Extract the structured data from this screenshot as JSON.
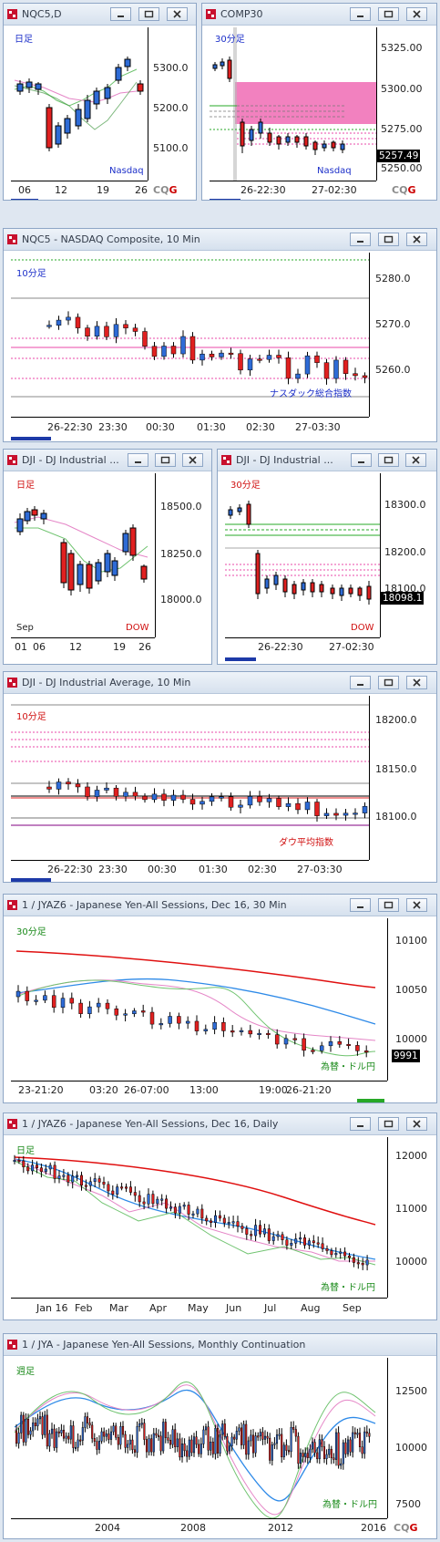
{
  "windows": [
    {
      "id": "nqc5-daily",
      "title": "NQC5,D",
      "period": "日足",
      "period_color": "#1c2fc9",
      "label": "Nasdaq",
      "label_color": "#1c2fc9",
      "y_ticks": [
        "5300.0",
        "5200.0",
        "5100.0"
      ],
      "x_ticks": [
        "06",
        "12",
        "19",
        "26"
      ],
      "cqg": "CQG"
    },
    {
      "id": "comp30",
      "title": "COMP30",
      "period": "30分足",
      "period_color": "#1c2fc9",
      "label": "Nasdaq",
      "label_color": "#1c2fc9",
      "y_ticks": [
        "5325.00",
        "5300.00",
        "5275.00",
        "5250.00"
      ],
      "price_badge": "5257.49",
      "x_ticks": [
        "26-22:30",
        "27-02:30"
      ],
      "cqg": "CQG"
    },
    {
      "id": "nqc5-10min",
      "title": "NQC5 - NASDAQ Composite, 10 Min",
      "period": "10分足",
      "period_color": "#1c2fc9",
      "label": "ナスダック総合指数",
      "label_color": "#1c2fc9",
      "y_ticks": [
        "5280.0",
        "5270.0",
        "5260.0"
      ],
      "x_ticks": [
        "26-22:30",
        "23:30",
        "00:30",
        "01:30",
        "02:30",
        "27-03:30"
      ]
    },
    {
      "id": "dji-daily",
      "title": "DJI - DJ Industrial ...",
      "period": "日足",
      "period_color": "#d01010",
      "label": "DOW",
      "label_color": "#d01010",
      "month_label": "Sep",
      "y_ticks": [
        "18500.0",
        "18250.0",
        "18000.0"
      ],
      "x_ticks": [
        "01",
        "06",
        "12",
        "19",
        "26"
      ]
    },
    {
      "id": "dji-30",
      "title": "DJI - DJ Industrial ...",
      "period": "30分足",
      "period_color": "#d01010",
      "label": "DOW",
      "label_color": "#d01010",
      "y_ticks": [
        "18300.0",
        "18200.0",
        "18100.0"
      ],
      "price_badge": "18098.1",
      "x_ticks": [
        "26-22:30",
        "27-02:30"
      ]
    },
    {
      "id": "dji-10min",
      "title": "DJI - DJ Industrial Average, 10 Min",
      "period": "10分足",
      "period_color": "#d01010",
      "label": "ダウ平均指数",
      "label_color": "#d01010",
      "y_ticks": [
        "18200.0",
        "18150.0",
        "18100.0"
      ],
      "x_ticks": [
        "26-22:30",
        "23:30",
        "00:30",
        "01:30",
        "02:30",
        "27-03:30"
      ]
    },
    {
      "id": "jyaz6-30",
      "title": "1 / JYAZ6 - Japanese Yen-All Sessions, Dec 16, 30 Min",
      "period": "30分足",
      "period_color": "#1a8a1a",
      "label": "為替・ドル円",
      "label_color": "#1a8a1a",
      "y_ticks": [
        "10100",
        "10050",
        "10000"
      ],
      "price_badge": "9991",
      "x_ticks": [
        "23-21:20",
        "03:20",
        "26-07:00",
        "13:00",
        "19:00",
        "26-21:20"
      ]
    },
    {
      "id": "jyaz6-daily",
      "title": "1 / JYAZ6 - Japanese Yen-All Sessions, Dec 16, Daily",
      "period": "日足",
      "period_color": "#1a8a1a",
      "label": "為替・ドル円",
      "label_color": "#1a8a1a",
      "y_ticks": [
        "12000",
        "11000",
        "10000"
      ],
      "x_ticks": [
        "Jan 16",
        "Feb",
        "Mar",
        "Apr",
        "May",
        "Jun",
        "Jul",
        "Aug",
        "Sep"
      ]
    },
    {
      "id": "jya-monthly",
      "title": "1 / JYA - Japanese Yen-All Sessions, Monthly Continuation",
      "period": "週足",
      "period_color": "#1a8a1a",
      "label": "為替・ドル円",
      "label_color": "#1a8a1a",
      "y_ticks": [
        "12500",
        "10000",
        "7500"
      ],
      "x_ticks": [
        "2004",
        "2008",
        "2012",
        "2016"
      ],
      "cqg": "CQG"
    }
  ]
}
